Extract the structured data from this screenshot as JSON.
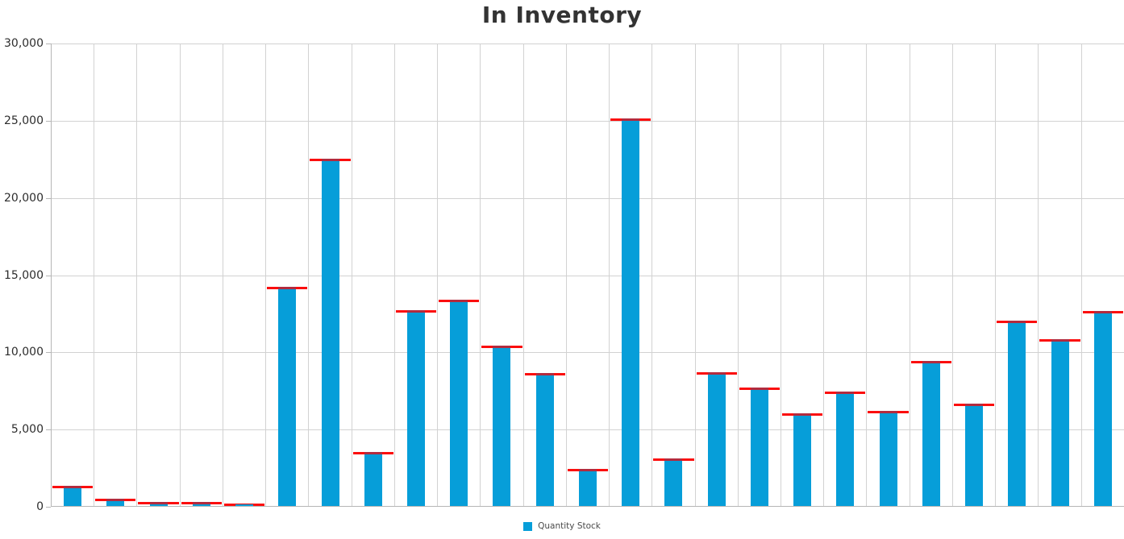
{
  "chart_data": {
    "type": "bar",
    "title": "In Inventory",
    "xlabel": "",
    "ylabel": "",
    "ylim": [
      0,
      30000
    ],
    "y_ticks": [
      0,
      5000,
      10000,
      15000,
      20000,
      25000,
      30000
    ],
    "y_tick_labels": [
      "0",
      "5,000",
      "10,000",
      "15,000",
      "20,000",
      "25,000",
      "30,000"
    ],
    "x_tick_labels_visible": false,
    "grid": true,
    "legend_position": "bottom-center",
    "bar_count": 25,
    "series": [
      {
        "name": "Quantity Stock",
        "color": "#069ED9",
        "values": [
          1300,
          470,
          250,
          250,
          100,
          14200,
          22500,
          3500,
          12700,
          13350,
          10400,
          8600,
          2400,
          25100,
          3100,
          8650,
          7650,
          6000,
          7400,
          6150,
          9400,
          6650,
          12000,
          10800,
          12650
        ]
      }
    ],
    "marker_overlay": {
      "description": "red line spanning each category cell at the bar's value; appears dark crimson where it crosses the bar top",
      "color": "#FB0E0E",
      "overlap_color_on_bar": "#B22B3E",
      "values_equal_series": "Quantity Stock"
    }
  },
  "legend": {
    "items": [
      {
        "label": "Quantity Stock",
        "color": "#069ED9"
      }
    ]
  },
  "style": {
    "title_color": "#333333",
    "axis_color": "#B6B6B6",
    "grid_color": "#D2D2D2",
    "y_label_color": "#2D2D2D",
    "legend_text_color": "#4A4A4A",
    "bar_color": "#069ED9",
    "marker_color": "#FB0E0E",
    "bar_cap_color": "#B22B3E",
    "background": "#FFFFFF"
  }
}
